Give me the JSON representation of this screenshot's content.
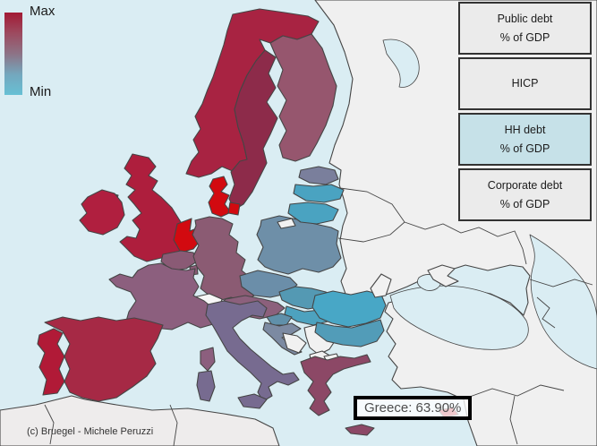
{
  "legend": {
    "max_label": "Max",
    "min_label": "Min",
    "gradient": [
      "#a21b35",
      "#9d4a5f",
      "#8d7386",
      "#74a7bd",
      "#67c0d4"
    ]
  },
  "buttons": [
    {
      "id": "public-debt",
      "lines": [
        "Public debt",
        "% of GDP"
      ],
      "active": false
    },
    {
      "id": "hicp",
      "lines": [
        "HICP"
      ],
      "active": false
    },
    {
      "id": "hh-debt",
      "lines": [
        "HH debt",
        "% of GDP"
      ],
      "active": true
    },
    {
      "id": "corporate-debt",
      "lines": [
        "Corporate debt",
        "% of GDP"
      ],
      "active": false
    }
  ],
  "tooltip": {
    "label": "Greece: 63.90%",
    "country": "Greece",
    "value_pct": 63.9
  },
  "credit": "(c) Bruegel - Michele Peruzzi",
  "map": {
    "metric": "HH debt % of GDP",
    "sea_color": "#daedf3",
    "neutral_color": "#f1f1f1",
    "border_color": "#454545",
    "active_button_bg": "#c6e1e8",
    "regions": [
      {
        "id": "east-neutral",
        "color": "#f0f0f0",
        "interactive": false
      },
      {
        "id": "africa",
        "color": "#eeecec",
        "interactive": false
      },
      {
        "id": "white-sea",
        "color": "#daedf3",
        "interactive": false
      },
      {
        "id": "norway",
        "color": "#a82342",
        "interactive": true
      },
      {
        "id": "sweden",
        "color": "#8d2b4a",
        "interactive": true
      },
      {
        "id": "finland",
        "color": "#96566e",
        "interactive": true
      },
      {
        "id": "denmark",
        "color": "#d20a10",
        "interactive": true
      },
      {
        "id": "denmark-isles",
        "color": "#d20a10",
        "interactive": true
      },
      {
        "id": "uk",
        "color": "#ae1e3d",
        "interactive": true
      },
      {
        "id": "n-ireland",
        "color": "#9a3c58",
        "interactive": true
      },
      {
        "id": "ireland",
        "color": "#b01f3f",
        "interactive": true
      },
      {
        "id": "netherlands",
        "color": "#d20a10",
        "interactive": true
      },
      {
        "id": "belgium",
        "color": "#8a5a75",
        "interactive": true
      },
      {
        "id": "luxembourg",
        "color": "#8a5a75",
        "interactive": true
      },
      {
        "id": "germany",
        "color": "#8b5b73",
        "interactive": true
      },
      {
        "id": "poland",
        "color": "#6e8fa8",
        "interactive": true
      },
      {
        "id": "czechia",
        "color": "#6b8ea9",
        "interactive": true
      },
      {
        "id": "slovakia",
        "color": "#5499b3",
        "interactive": true
      },
      {
        "id": "austria",
        "color": "#8c607c",
        "interactive": true
      },
      {
        "id": "switzerland",
        "color": "#f7f7f7",
        "interactive": false
      },
      {
        "id": "france",
        "color": "#8c5f7e",
        "interactive": true
      },
      {
        "id": "italy",
        "color": "#776b90",
        "interactive": true
      },
      {
        "id": "sicily",
        "color": "#776b90",
        "interactive": true
      },
      {
        "id": "sardinia",
        "color": "#776b90",
        "interactive": true
      },
      {
        "id": "corsica",
        "color": "#8c5f7e",
        "interactive": true
      },
      {
        "id": "hungary",
        "color": "#4da2bf",
        "interactive": true
      },
      {
        "id": "slovenia",
        "color": "#6090aa",
        "interactive": true
      },
      {
        "id": "croatia",
        "color": "#7c8aa2",
        "interactive": true
      },
      {
        "id": "bosnia",
        "color": "#f1f1f1",
        "interactive": false
      },
      {
        "id": "serbia",
        "color": "#f1f1f1",
        "interactive": false
      },
      {
        "id": "albania",
        "color": "#f1f1f1",
        "interactive": false
      },
      {
        "id": "macedonia",
        "color": "#f1f1f1",
        "interactive": false
      },
      {
        "id": "romania",
        "color": "#48a7c6",
        "interactive": true
      },
      {
        "id": "moldova",
        "color": "#f1f1f1",
        "interactive": false
      },
      {
        "id": "bulgaria",
        "color": "#529cb8",
        "interactive": true
      },
      {
        "id": "greece",
        "color": "#8c4866",
        "interactive": true
      },
      {
        "id": "crete",
        "color": "#8c4866",
        "interactive": true
      },
      {
        "id": "spain",
        "color": "#a62945",
        "interactive": true
      },
      {
        "id": "portugal",
        "color": "#b11a37",
        "interactive": true
      },
      {
        "id": "estonia",
        "color": "#7a7f9c",
        "interactive": true
      },
      {
        "id": "latvia",
        "color": "#4aa3c1",
        "interactive": true
      },
      {
        "id": "lithuania",
        "color": "#4aa3c1",
        "interactive": true
      },
      {
        "id": "kaliningrad",
        "color": "#f1f1f1",
        "interactive": false
      },
      {
        "id": "black-sea",
        "color": "#daedf3",
        "interactive": false
      },
      {
        "id": "azov-sea",
        "color": "#daedf3",
        "interactive": false
      },
      {
        "id": "caspian-sea",
        "color": "#daedf3",
        "interactive": false
      },
      {
        "id": "crimea",
        "color": "#f0f0f0",
        "interactive": false
      },
      {
        "id": "cyprus",
        "color": "#c00d1d",
        "interactive": true
      }
    ]
  }
}
